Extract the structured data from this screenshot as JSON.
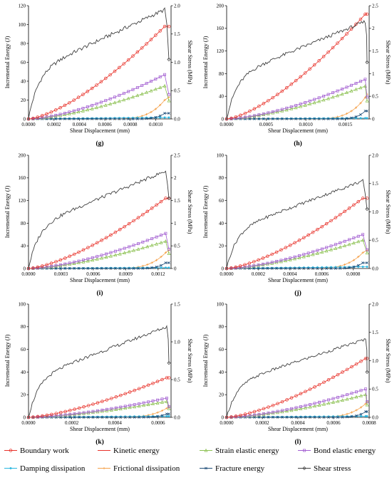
{
  "legend": [
    {
      "label": "Boundary work",
      "color": "#e8322a",
      "marker": "circle"
    },
    {
      "label": "Kinetic energy",
      "color": "#e8322a",
      "marker": "line"
    },
    {
      "label": "Strain elastic energy",
      "color": "#8cc152",
      "marker": "triangle"
    },
    {
      "label": "Bond elastic energy",
      "color": "#a25ed1",
      "marker": "square"
    },
    {
      "label": "Damping dissipation",
      "color": "#27b6e0",
      "marker": "star"
    },
    {
      "label": "Frictional dissipation",
      "color": "#f5a14a",
      "marker": "plus"
    },
    {
      "label": "Fracture energy",
      "color": "#1f4e79",
      "marker": "x"
    },
    {
      "label": "Shear stress",
      "color": "#404040",
      "marker": "diamond"
    }
  ],
  "chart_data": [
    {
      "panel": "(g)",
      "type": "line",
      "xlabel": "Shear Displacement (mm)",
      "ylabel": "Incremental Energy (J)",
      "y2label": "Shear Stress (MPa)",
      "xlim": [
        0,
        0.00112
      ],
      "xticks": [
        "0.0000",
        "0.0002",
        "0.0004",
        "0.0006",
        "0.0008",
        "0.0010"
      ],
      "xtick_values": [
        0,
        0.0002,
        0.0004,
        0.0006,
        0.0008,
        0.001
      ],
      "ylim": [
        0,
        120
      ],
      "yticks": [
        0,
        20,
        40,
        60,
        80,
        100,
        120
      ],
      "y2lim": [
        0,
        2.0
      ],
      "y2ticks": [
        "0.0",
        "0.5",
        "1.0",
        "1.5",
        "2.0"
      ],
      "y2tick_values": [
        0,
        0.5,
        1.0,
        1.5,
        2.0
      ],
      "xpeak": 0.00107,
      "peaks": {
        "boundary": 98,
        "kinetic": 98,
        "strain": 35,
        "bond": 47,
        "frictional": 20,
        "damping": 1.5,
        "fracture": 6,
        "stress": 1.93
      },
      "stress_end": 1.05
    },
    {
      "panel": "(h)",
      "type": "line",
      "xlabel": "Shear Displacement (mm)",
      "ylabel": "Incremental Energy (J)",
      "y2label": "Shear Stress (MPa)",
      "xlim": [
        0,
        0.0018
      ],
      "xticks": [
        "0.0000",
        "0.0005",
        "0.0010",
        "0.0015"
      ],
      "xtick_values": [
        0,
        0.0005,
        0.001,
        0.0015
      ],
      "ylim": [
        0,
        200
      ],
      "yticks": [
        0,
        40,
        80,
        120,
        160,
        200
      ],
      "y2lim": [
        0,
        2.5
      ],
      "y2ticks": [
        "0",
        "0.5",
        "1",
        "1.5",
        "2",
        "2.5"
      ],
      "y2tick_values": [
        0,
        0.5,
        1,
        1.5,
        2,
        2.5
      ],
      "xpeak": 0.00175,
      "peaks": {
        "boundary": 185,
        "kinetic": 185,
        "strain": 58,
        "bond": 70,
        "frictional": 38,
        "damping": 1.5,
        "fracture": 14,
        "stress": 2.15
      },
      "stress_end": 1.25
    },
    {
      "panel": "(i)",
      "type": "line",
      "xlabel": "Shear Displacement (mm)",
      "ylabel": "Incremental Energy (J)",
      "y2label": "Shear Stress (MPa)",
      "xlim": [
        0,
        0.00132
      ],
      "xticks": [
        "0.0000",
        "0.0003",
        "0.0006",
        "0.0009",
        "0.0012"
      ],
      "xtick_values": [
        0,
        0.0003,
        0.0006,
        0.0009,
        0.0012
      ],
      "ylim": [
        0,
        200
      ],
      "yticks": [
        0,
        40,
        80,
        120,
        160,
        200
      ],
      "y2lim": [
        0,
        2.5
      ],
      "y2ticks": [
        "0",
        "0.5",
        "1",
        "1.5",
        "2",
        "2.5"
      ],
      "y2tick_values": [
        0,
        0.5,
        1,
        1.5,
        2,
        2.5
      ],
      "xpeak": 0.00127,
      "peaks": {
        "boundary": 124,
        "kinetic": 124,
        "strain": 48,
        "bond": 62,
        "frictional": 28,
        "damping": 1.5,
        "fracture": 10,
        "stress": 2.15
      },
      "stress_end": 1.55
    },
    {
      "panel": "(j)",
      "type": "line",
      "xlabel": "Shear Displacement (mm)",
      "ylabel": "Incremental Energy (J)",
      "y2label": "Shear Stress (MPa)",
      "xlim": [
        0,
        0.0009
      ],
      "xticks": [
        "0.0000",
        "0.0002",
        "0.0004",
        "0.0006",
        "0.0008"
      ],
      "xtick_values": [
        0,
        0.0002,
        0.0004,
        0.0006,
        0.0008
      ],
      "ylim": [
        0,
        100
      ],
      "yticks": [
        0,
        20,
        40,
        60,
        80,
        100
      ],
      "y2lim": [
        0,
        2.0
      ],
      "y2ticks": [
        "0.0",
        "0.5",
        "1.0",
        "1.5",
        "2.0"
      ],
      "y2tick_values": [
        0,
        0.5,
        1.0,
        1.5,
        2.0
      ],
      "xpeak": 0.00086,
      "peaks": {
        "boundary": 62,
        "kinetic": 62,
        "strain": 25,
        "bond": 30,
        "frictional": 14,
        "damping": 1.5,
        "fracture": 5,
        "stress": 1.55
      },
      "stress_end": 1.05
    },
    {
      "panel": "(k)",
      "type": "line",
      "xlabel": "Shear Displacement (mm)",
      "ylabel": "Incremental Energy (J)",
      "y2label": "Shear Stress (MPa)",
      "xlim": [
        0,
        0.00066
      ],
      "xticks": [
        "0.0000",
        "0.0002",
        "0.0004",
        "0.0006"
      ],
      "xtick_values": [
        0,
        0.0002,
        0.0004,
        0.0006
      ],
      "ylim": [
        0,
        100
      ],
      "yticks": [
        0,
        20,
        40,
        60,
        80,
        100
      ],
      "y2lim": [
        0,
        1.5
      ],
      "y2ticks": [
        "0.0",
        "0.5",
        "1.0",
        "1.5"
      ],
      "y2tick_values": [
        0,
        0.5,
        1.0,
        1.5
      ],
      "xpeak": 0.00064,
      "peaks": {
        "boundary": 35,
        "kinetic": 35,
        "strain": 14,
        "bond": 17,
        "frictional": 8,
        "damping": 1,
        "fracture": 3,
        "stress": 1.2
      },
      "stress_end": 0.72
    },
    {
      "panel": "(l)",
      "type": "line",
      "xlabel": "Shear Displacement (mm)",
      "ylabel": "Incremental Energy (J)",
      "y2label": "Shear Stress (MPa)",
      "xlim": [
        0,
        0.0008
      ],
      "xticks": [
        "0.0000",
        "0.0002",
        "0.0004",
        "0.0006",
        "0.0008"
      ],
      "xtick_values": [
        0,
        0.0002,
        0.0004,
        0.0006,
        0.0008
      ],
      "ylim": [
        0,
        100
      ],
      "yticks": [
        0,
        20,
        40,
        60,
        80,
        100
      ],
      "y2lim": [
        0,
        2.0
      ],
      "y2ticks": [
        "0.0",
        "0.5",
        "1.0",
        "1.5",
        "2.0"
      ],
      "y2tick_values": [
        0,
        0.5,
        1.0,
        1.5,
        2.0
      ],
      "xpeak": 0.00078,
      "peaks": {
        "boundary": 52,
        "kinetic": 52,
        "strain": 20,
        "bond": 25,
        "frictional": 12,
        "damping": 1,
        "fracture": 5,
        "stress": 1.38
      },
      "stress_end": 0.8
    }
  ]
}
